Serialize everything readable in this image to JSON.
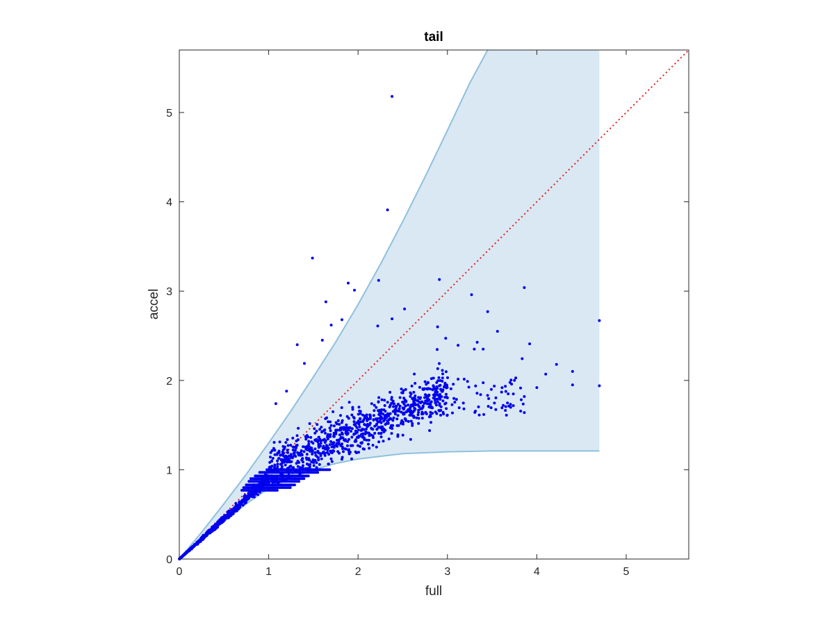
{
  "chart_data": {
    "type": "scatter",
    "title": "tail",
    "xlabel": "full",
    "ylabel": "accel",
    "xlim": [
      0,
      5.7
    ],
    "ylim": [
      0,
      5.7
    ],
    "xticks": [
      "0",
      "1",
      "2",
      "3",
      "4",
      "5"
    ],
    "yticks": [
      "0",
      "1",
      "2",
      "3",
      "4",
      "5"
    ],
    "grid": false,
    "colors": {
      "points": "#0000ee",
      "band_fill": "#d9e8f3",
      "band_edge": "#8fc0dc",
      "reference_line": "#e41a1c",
      "axes": "#262626"
    },
    "reference_line": {
      "x": [
        0,
        5.7
      ],
      "y": [
        0,
        5.7
      ],
      "style": "dotted"
    },
    "band": {
      "upper": {
        "x": [
          0,
          0.25,
          0.5,
          0.75,
          1.0,
          1.25,
          1.5,
          1.75,
          2.0,
          2.25,
          2.5,
          2.75,
          3.0,
          3.25,
          3.45
        ],
        "y": [
          0,
          0.3,
          0.62,
          0.95,
          1.3,
          1.66,
          2.04,
          2.43,
          2.85,
          3.3,
          3.78,
          4.28,
          4.8,
          5.33,
          5.7
        ]
      },
      "top_edge_x": [
        3.45,
        4.7
      ],
      "right_edge_x": 4.7,
      "lower": {
        "x": [
          0,
          0.25,
          0.5,
          0.75,
          1.0,
          1.25,
          1.5,
          1.75,
          2.0,
          2.5,
          3.0,
          3.5,
          4.0,
          4.7
        ],
        "y": [
          0,
          0.2,
          0.42,
          0.62,
          0.79,
          0.91,
          1.0,
          1.07,
          1.12,
          1.18,
          1.2,
          1.21,
          1.21,
          1.21
        ]
      }
    },
    "highlighted_points": [
      {
        "x": 2.38,
        "y": 5.18
      },
      {
        "x": 2.33,
        "y": 3.91
      },
      {
        "x": 1.49,
        "y": 3.37
      },
      {
        "x": 1.89,
        "y": 3.09
      },
      {
        "x": 2.23,
        "y": 3.12
      },
      {
        "x": 2.91,
        "y": 3.13
      },
      {
        "x": 3.86,
        "y": 3.04
      },
      {
        "x": 3.27,
        "y": 2.96
      },
      {
        "x": 1.96,
        "y": 3.01
      },
      {
        "x": 1.64,
        "y": 2.88
      },
      {
        "x": 4.7,
        "y": 2.67
      },
      {
        "x": 3.45,
        "y": 2.77
      },
      {
        "x": 2.52,
        "y": 2.8
      },
      {
        "x": 2.38,
        "y": 2.69
      },
      {
        "x": 3.92,
        "y": 2.41
      },
      {
        "x": 2.22,
        "y": 2.61
      },
      {
        "x": 2.89,
        "y": 2.6
      },
      {
        "x": 1.82,
        "y": 2.68
      },
      {
        "x": 1.7,
        "y": 2.62
      },
      {
        "x": 3.56,
        "y": 2.55
      },
      {
        "x": 4.22,
        "y": 2.18
      },
      {
        "x": 4.4,
        "y": 2.1
      },
      {
        "x": 4.4,
        "y": 1.95
      },
      {
        "x": 4.7,
        "y": 1.94
      },
      {
        "x": 4.1,
        "y": 2.07
      },
      {
        "x": 3.86,
        "y": 1.82
      },
      {
        "x": 3.68,
        "y": 1.85
      },
      {
        "x": 1.32,
        "y": 2.4
      },
      {
        "x": 1.4,
        "y": 2.19
      },
      {
        "x": 1.2,
        "y": 1.88
      },
      {
        "x": 1.08,
        "y": 1.74
      },
      {
        "x": 1.6,
        "y": 2.45
      },
      {
        "x": 3.3,
        "y": 2.35
      },
      {
        "x": 3.4,
        "y": 2.35
      },
      {
        "x": 3.75,
        "y": 2.0
      },
      {
        "x": 4.0,
        "y": 1.92
      }
    ],
    "cluster_rows": [
      {
        "y": 1.0,
        "x_from": 0.98,
        "x_to": 1.7
      },
      {
        "y": 0.97,
        "x_from": 0.9,
        "x_to": 1.55
      },
      {
        "y": 0.93,
        "x_from": 0.85,
        "x_to": 1.45
      },
      {
        "y": 0.9,
        "x_from": 0.8,
        "x_to": 1.4
      },
      {
        "y": 0.87,
        "x_from": 0.78,
        "x_to": 1.35
      },
      {
        "y": 0.83,
        "x_from": 0.75,
        "x_to": 1.3
      },
      {
        "y": 0.8,
        "x_from": 0.72,
        "x_to": 1.25
      },
      {
        "y": 0.77,
        "x_from": 0.7,
        "x_to": 1.1
      }
    ],
    "point_cloud": {
      "count": 1500,
      "x_range": [
        0,
        4.7
      ],
      "dense_x_range": [
        0,
        3.0
      ],
      "note_shape": "clustered near the diagonal at low x, fanning out below the diagonal toward y≈1.5–2.0 for x between 2 and 4"
    }
  }
}
